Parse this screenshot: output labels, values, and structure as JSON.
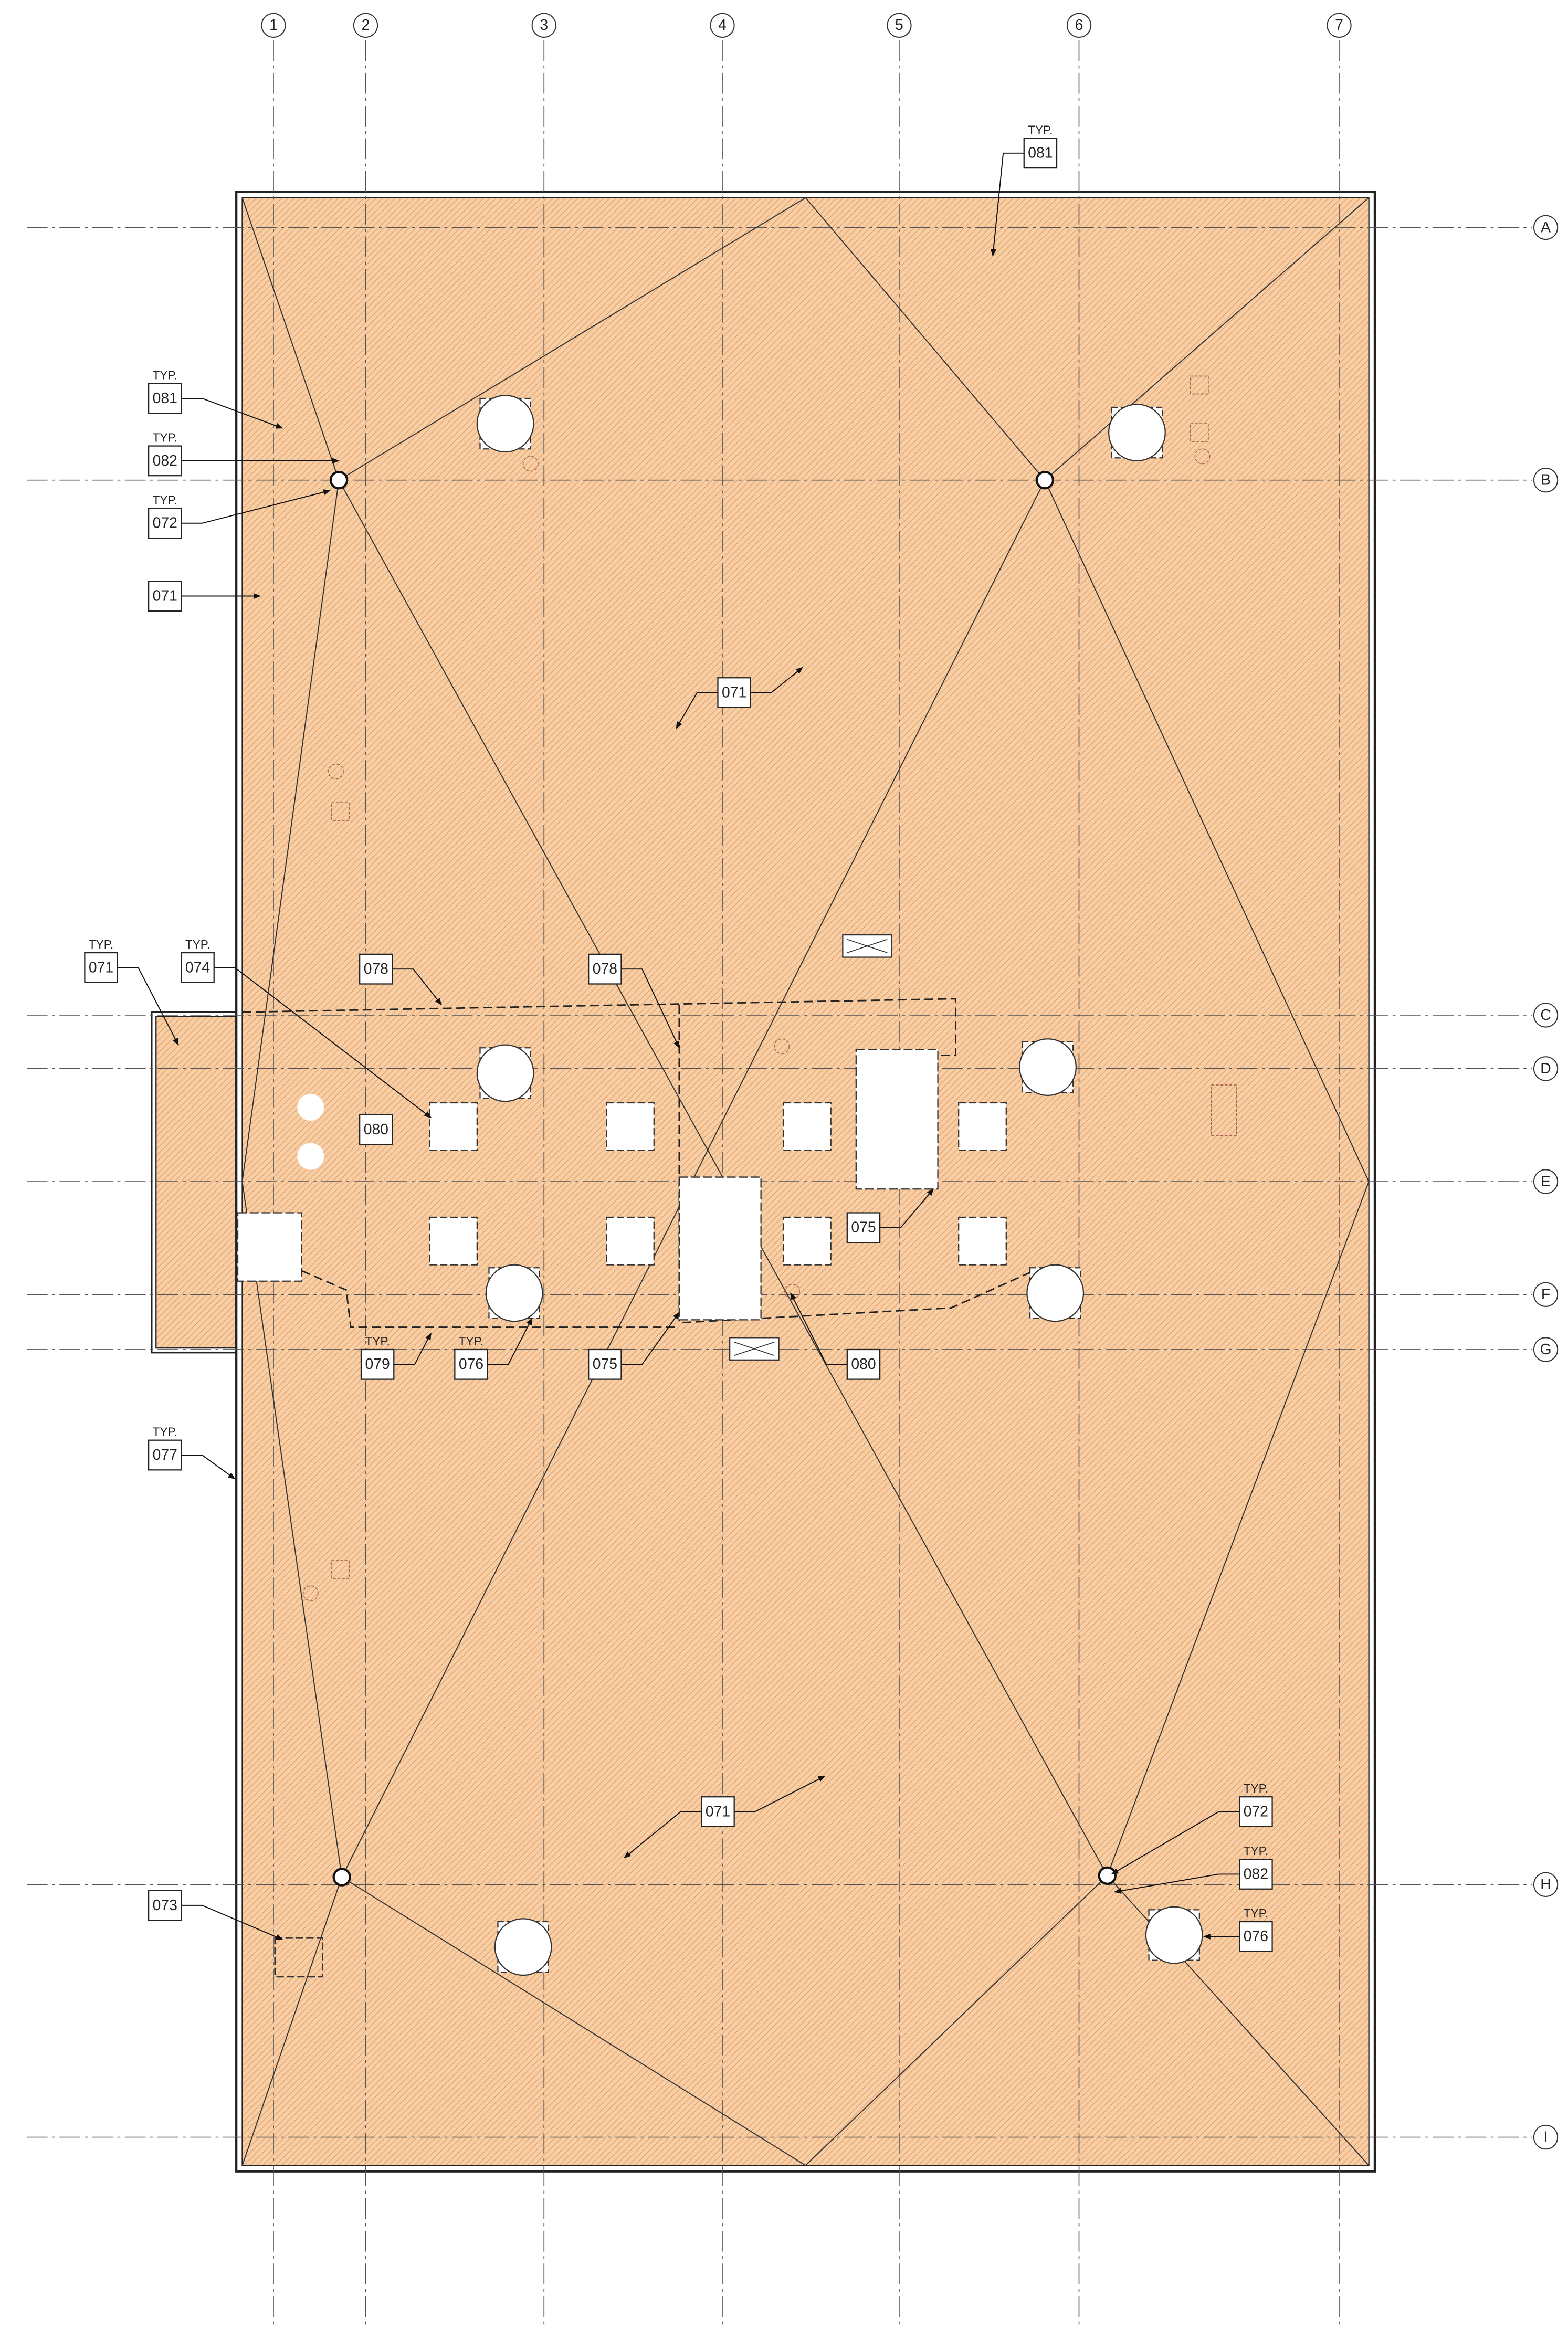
{
  "grid": {
    "columns": [
      "1",
      "2",
      "3",
      "4",
      "5",
      "6",
      "7"
    ],
    "rows": [
      "A",
      "B",
      "C",
      "D",
      "E",
      "F",
      "G",
      "H",
      "I"
    ]
  },
  "keynotes": [
    {
      "typ": "TYP.",
      "label": "081"
    },
    {
      "typ": "TYP.",
      "label": "081"
    },
    {
      "typ": "TYP.",
      "label": "082"
    },
    {
      "typ": "TYP.",
      "label": "072"
    },
    {
      "label": "071"
    },
    {
      "label": "071"
    },
    {
      "typ": "TYP.",
      "label": "071"
    },
    {
      "typ": "TYP.",
      "label": "074"
    },
    {
      "label": "078"
    },
    {
      "label": "078"
    },
    {
      "label": "080"
    },
    {
      "label": "075"
    },
    {
      "typ": "TYP.",
      "label": "079"
    },
    {
      "typ": "TYP.",
      "label": "076"
    },
    {
      "label": "075"
    },
    {
      "label": "080"
    },
    {
      "typ": "TYP.",
      "label": "077"
    },
    {
      "label": "071"
    },
    {
      "label": "073"
    },
    {
      "typ": "TYP.",
      "label": "072"
    },
    {
      "typ": "TYP.",
      "label": "082"
    },
    {
      "typ": "TYP.",
      "label": "076"
    }
  ]
}
